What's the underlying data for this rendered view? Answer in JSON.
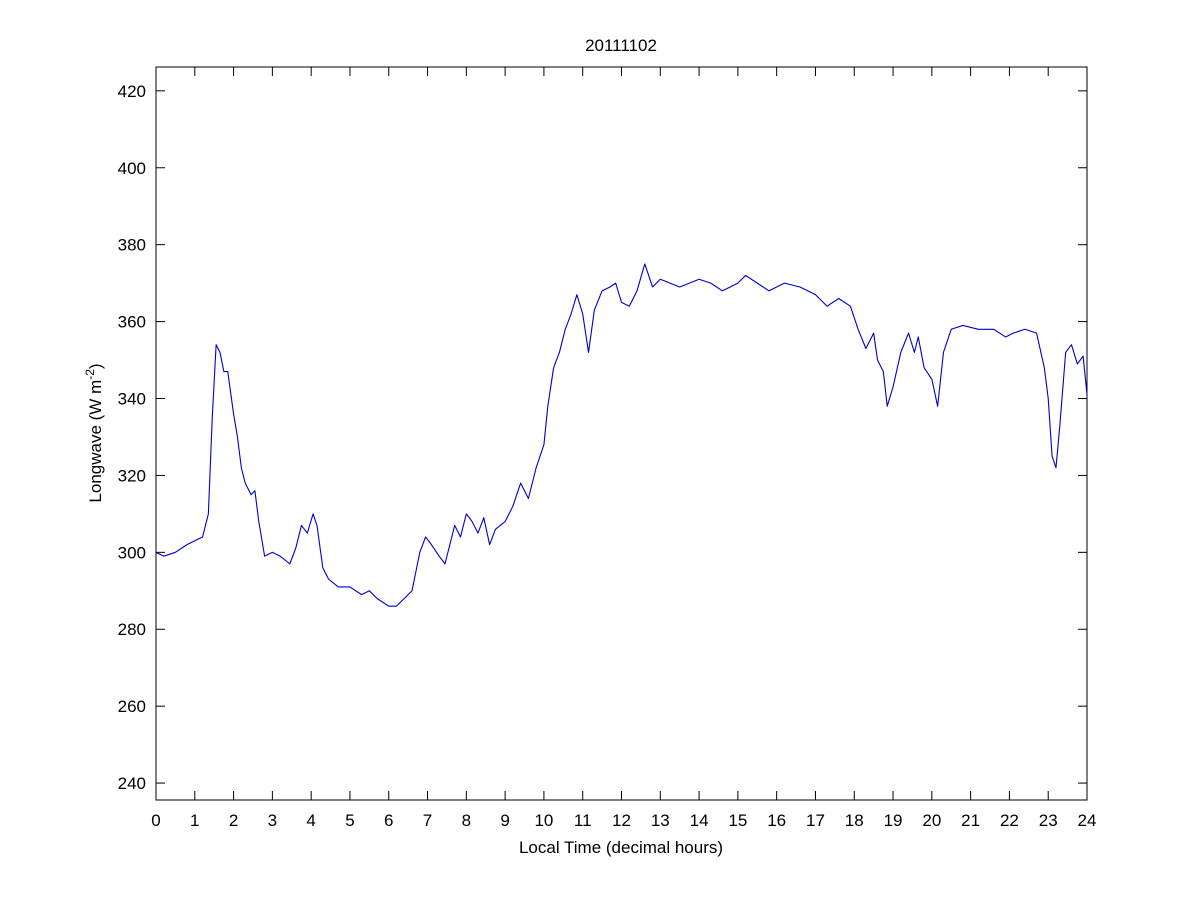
{
  "chart_data": {
    "type": "line",
    "title": "20111102",
    "xlabel": "Local Time (decimal hours)",
    "ylabel": "Longwave (W m",
    "ylabel_sup": "-2",
    "ylabel_end": ")",
    "x": [
      0,
      0.2,
      0.5,
      0.8,
      1.0,
      1.2,
      1.35,
      1.45,
      1.55,
      1.65,
      1.75,
      1.85,
      2.0,
      2.1,
      2.2,
      2.3,
      2.45,
      2.55,
      2.65,
      2.8,
      3.0,
      3.2,
      3.45,
      3.6,
      3.75,
      3.9,
      4.05,
      4.15,
      4.3,
      4.45,
      4.7,
      5.0,
      5.3,
      5.5,
      5.7,
      6.0,
      6.2,
      6.4,
      6.6,
      6.8,
      6.95,
      7.1,
      7.3,
      7.45,
      7.6,
      7.7,
      7.85,
      8.0,
      8.15,
      8.3,
      8.45,
      8.6,
      8.75,
      9.0,
      9.2,
      9.4,
      9.6,
      9.8,
      10.0,
      10.1,
      10.25,
      10.4,
      10.55,
      10.7,
      10.85,
      11.0,
      11.15,
      11.3,
      11.5,
      11.7,
      11.85,
      12.0,
      12.2,
      12.4,
      12.6,
      12.8,
      13.0,
      13.5,
      14.0,
      14.3,
      14.6,
      15.0,
      15.2,
      15.5,
      15.8,
      16.2,
      16.6,
      17.0,
      17.3,
      17.6,
      17.9,
      18.1,
      18.3,
      18.5,
      18.6,
      18.75,
      18.85,
      19.0,
      19.2,
      19.4,
      19.55,
      19.65,
      19.8,
      20.0,
      20.15,
      20.3,
      20.5,
      20.8,
      21.2,
      21.6,
      21.9,
      22.1,
      22.4,
      22.7,
      22.9,
      23.0,
      23.1,
      23.2,
      23.3,
      23.45,
      23.6,
      23.75,
      23.9,
      24.0
    ],
    "series": [
      {
        "color": "#0000cc",
        "values": [
          300,
          299,
          300,
          302,
          303,
          304,
          310,
          335,
          354,
          352,
          347,
          347,
          336,
          330,
          322,
          318,
          315,
          316,
          308,
          299,
          300,
          299,
          297,
          301,
          307,
          305,
          310,
          307,
          296,
          293,
          291,
          291,
          289,
          290,
          288,
          286,
          286,
          288,
          290,
          300,
          304,
          302,
          299,
          297,
          303,
          307,
          304,
          310,
          308,
          305,
          309,
          302,
          306,
          308,
          312,
          318,
          314,
          322,
          328,
          338,
          348,
          352,
          358,
          362,
          367,
          362,
          352,
          363,
          368,
          369,
          370,
          365,
          364,
          368,
          375,
          369,
          371,
          369,
          371,
          370,
          368,
          370,
          372,
          370,
          368,
          370,
          369,
          367,
          364,
          366,
          364,
          358,
          353,
          357,
          350,
          347,
          338,
          343,
          352,
          357,
          352,
          356,
          348,
          345,
          338,
          352,
          358,
          359,
          358,
          358,
          356,
          357,
          358,
          357,
          348,
          340,
          325,
          322,
          333,
          352,
          354,
          349,
          351,
          341
        ]
      }
    ],
    "xlim": [
      0,
      24
    ],
    "xticks": [
      0,
      1,
      2,
      3,
      4,
      5,
      6,
      7,
      8,
      9,
      10,
      11,
      12,
      13,
      14,
      15,
      16,
      17,
      18,
      19,
      20,
      21,
      22,
      23,
      24
    ],
    "ylim": [
      235.6,
      426.2
    ],
    "yticks": [
      240,
      260,
      280,
      300,
      320,
      340,
      360,
      380,
      400,
      420
    ]
  }
}
